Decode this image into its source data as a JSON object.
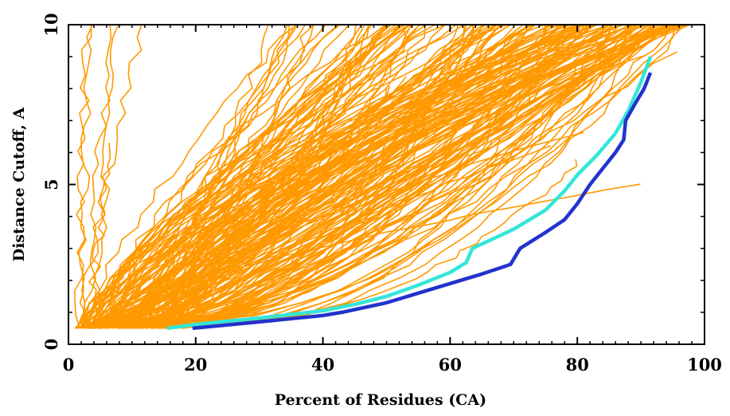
{
  "chart_data": {
    "type": "line",
    "title": "",
    "xlabel": "Percent of Residues (CA)",
    "ylabel": "Distance Cutoff, A",
    "xlim": [
      0,
      100
    ],
    "ylim": [
      0,
      10
    ],
    "xticks": [
      0,
      20,
      40,
      60,
      80,
      100
    ],
    "xtick_labels": [
      "0",
      "20",
      "40",
      "60",
      "80",
      "100"
    ],
    "yticks": [
      0,
      5,
      10
    ],
    "ytick_labels": [
      "0",
      "5",
      "10"
    ],
    "grid": false,
    "legend": "none",
    "background_series": {
      "color": "#FF9900",
      "count": 210,
      "y_start": 0.5,
      "y_end": 10,
      "x_at_start_range": [
        1.5,
        18
      ],
      "x_at_end_range": [
        4,
        98
      ]
    },
    "series": [
      {
        "color": "#33E6D9",
        "x": [
          15.5,
          20,
          30,
          40,
          45,
          50,
          55,
          60,
          62.5,
          63.5,
          70,
          75,
          78,
          80,
          83,
          86,
          88,
          90,
          91.5
        ],
        "y": [
          0.5,
          0.62,
          0.82,
          1.05,
          1.25,
          1.5,
          1.85,
          2.25,
          2.55,
          3.0,
          3.6,
          4.2,
          4.8,
          5.3,
          5.9,
          6.6,
          7.3,
          8.2,
          9.0
        ]
      },
      {
        "color": "#2233CC",
        "x": [
          19.5,
          30,
          40,
          43,
          50,
          55,
          60,
          65,
          69.5,
          71,
          75,
          78,
          80,
          82,
          84,
          86,
          87.3,
          87.6,
          89,
          90.5,
          91.5
        ],
        "y": [
          0.5,
          0.7,
          0.9,
          1.0,
          1.3,
          1.6,
          1.9,
          2.2,
          2.5,
          3.0,
          3.5,
          3.9,
          4.4,
          5.0,
          5.5,
          6.0,
          6.4,
          7.0,
          7.5,
          8.0,
          8.5
        ]
      }
    ]
  }
}
